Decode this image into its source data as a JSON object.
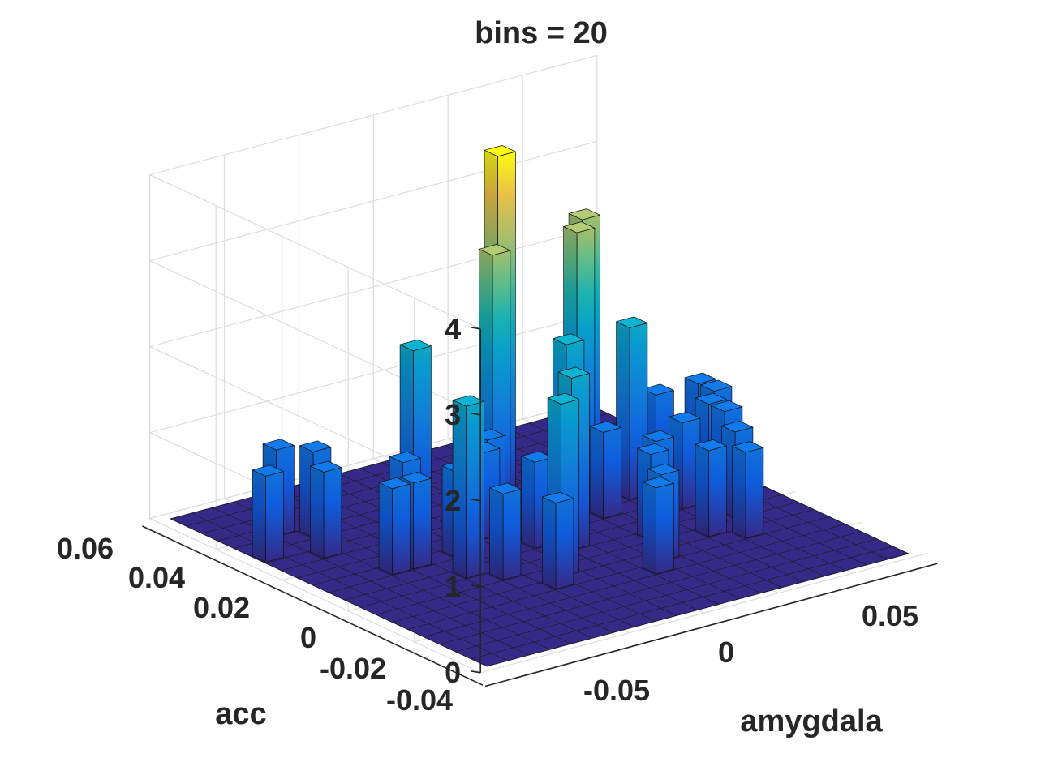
{
  "chart_data": {
    "type": "histogram3d",
    "title": "bins = 20",
    "xlabel": "amygdala",
    "ylabel": "acc",
    "zlabel": "",
    "x_range": [
      -0.08,
      0.08
    ],
    "y_range": [
      -0.044,
      0.056
    ],
    "z_range": [
      0,
      4
    ],
    "bins": 20,
    "x_ticks": [
      "-0.05",
      "0",
      "0.05"
    ],
    "y_ticks": [
      "-0.04",
      "-0.02",
      "0",
      "0.02",
      "0.04",
      "0.06"
    ],
    "z_ticks": [
      "0",
      "1",
      "2",
      "3",
      "4"
    ],
    "grid": true,
    "colormap": "parula",
    "bars": [
      {
        "i": 0,
        "j": 14,
        "count": 1
      },
      {
        "i": 2,
        "j": 13,
        "count": 1
      },
      {
        "i": 2,
        "j": 16,
        "count": 1
      },
      {
        "i": 3,
        "j": 15,
        "count": 1
      },
      {
        "i": 3,
        "j": 10,
        "count": 1
      },
      {
        "i": 4,
        "j": 10,
        "count": 1
      },
      {
        "i": 5,
        "j": 12,
        "count": 1
      },
      {
        "i": 5,
        "j": 8,
        "count": 2
      },
      {
        "i": 6,
        "j": 7,
        "count": 1
      },
      {
        "i": 6,
        "j": 10,
        "count": 1
      },
      {
        "i": 7,
        "j": 14,
        "count": 2
      },
      {
        "i": 7,
        "j": 5,
        "count": 1
      },
      {
        "i": 8,
        "j": 11,
        "count": 1
      },
      {
        "i": 8,
        "j": 6,
        "count": 2
      },
      {
        "i": 9,
        "j": 9,
        "count": 1
      },
      {
        "i": 9,
        "j": 12,
        "count": 1
      },
      {
        "i": 10,
        "j": 13,
        "count": 3
      },
      {
        "i": 10,
        "j": 8,
        "count": 2
      },
      {
        "i": 11,
        "j": 14,
        "count": 4
      },
      {
        "i": 11,
        "j": 4,
        "count": 1
      },
      {
        "i": 12,
        "j": 11,
        "count": 2
      },
      {
        "i": 12,
        "j": 5,
        "count": 1
      },
      {
        "i": 13,
        "j": 10,
        "count": 1
      },
      {
        "i": 13,
        "j": 7,
        "count": 1
      },
      {
        "i": 14,
        "j": 13,
        "count": 3
      },
      {
        "i": 14,
        "j": 8,
        "count": 1
      },
      {
        "i": 15,
        "j": 14,
        "count": 3
      },
      {
        "i": 15,
        "j": 6,
        "count": 1
      },
      {
        "i": 15,
        "j": 11,
        "count": 2
      },
      {
        "i": 16,
        "j": 9,
        "count": 1
      },
      {
        "i": 16,
        "j": 5,
        "count": 1
      },
      {
        "i": 17,
        "j": 7,
        "count": 1
      },
      {
        "i": 17,
        "j": 12,
        "count": 1
      },
      {
        "i": 18,
        "j": 10,
        "count": 1
      },
      {
        "i": 18,
        "j": 9,
        "count": 1
      },
      {
        "i": 19,
        "j": 12,
        "count": 1
      },
      {
        "i": 19,
        "j": 11,
        "count": 1
      }
    ]
  }
}
